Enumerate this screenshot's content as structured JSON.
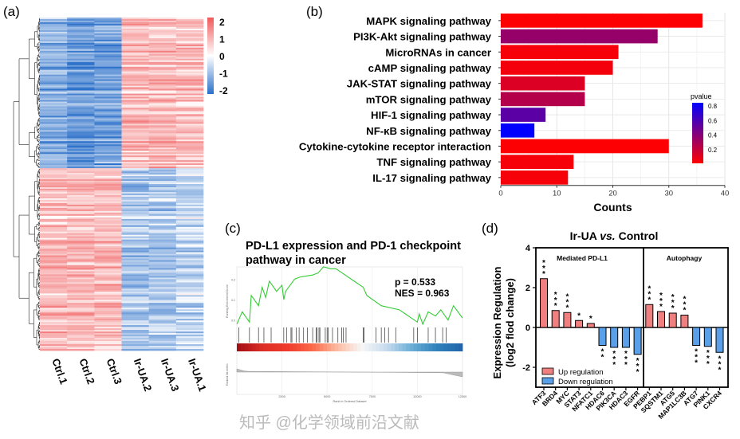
{
  "panel_labels": {
    "a": "(a)",
    "b": "(b)",
    "c": "(c)",
    "d": "(d)"
  },
  "watermark": "知乎 @化学领域前沿文献",
  "chart_data": [
    {
      "type": "heatmap",
      "panel": "a",
      "columns": [
        "Ctrl.1",
        "Ctrl.2",
        "Ctrl.3",
        "Ir-UA.2",
        "Ir-UA.3",
        "Ir-UA.1"
      ],
      "colorbar": {
        "ticks": [
          "2",
          "1",
          "0",
          "-1",
          "-2"
        ],
        "range": [
          -2,
          2
        ],
        "low_color": "#2a6fc9",
        "mid_color": "#ffffff",
        "high_color": "#f0595a"
      },
      "clusters": [
        {
          "row_share": 0.45,
          "column_means": [
            -1.1,
            -1.4,
            -1.3,
            0.8,
            0.8,
            0.75
          ]
        },
        {
          "row_share": 0.55,
          "column_means": [
            0.85,
            0.85,
            0.8,
            -0.8,
            -0.8,
            -0.6
          ]
        }
      ],
      "dendrogram": true
    },
    {
      "type": "bar",
      "panel": "b",
      "orientation": "horizontal",
      "categories": [
        "MAPK signaling pathway",
        "PI3K-Akt signaling pathway",
        "MicroRNAs in cancer",
        "cAMP signaling pathway",
        "JAK-STAT signaling pathway",
        "mTOR signaling pathway",
        "HIF-1 signaling pathway",
        "NF-κB signaling pathway",
        "Cytokine-cytokine receptor interaction",
        "TNF signaling pathway",
        "IL-17 signaling pathway"
      ],
      "values": [
        36,
        28,
        21,
        20,
        15,
        15,
        8,
        6,
        30,
        13,
        12
      ],
      "pvalue": [
        0.01,
        0.35,
        0.03,
        0.04,
        0.12,
        0.25,
        0.55,
        0.85,
        0.01,
        0.03,
        0.03
      ],
      "xlabel": "Counts",
      "xlim": [
        0,
        40
      ],
      "xticks": [
        "0",
        "10",
        "20",
        "30",
        "40"
      ],
      "grid": true,
      "legend": {
        "title": "pvalue",
        "ticks": [
          "0.8",
          "0.6",
          "0.4",
          "0.2"
        ],
        "low_color": "#ff0000",
        "high_color": "#0000ff",
        "placement": "right"
      }
    },
    {
      "type": "line",
      "panel": "c",
      "title": "PD-L1 expression and PD-1 checkpoint pathway in cancer",
      "annotation": [
        "p = 0.533",
        "NES = 0.963"
      ],
      "ylabel": "Running Enrichment Score",
      "ylabel2": "Ranked list metric",
      "xlabel": "Rank in Ordered Dataset",
      "xlim": [
        0,
        12500
      ],
      "xticks": [
        "2500",
        "5000",
        "7500",
        "10000",
        "12500"
      ],
      "yticks": [
        "0.2",
        "0.1",
        "0.0"
      ],
      "line_color": "#33cc33",
      "x": [
        0,
        300,
        700,
        800,
        1200,
        1400,
        1600,
        1800,
        2200,
        2500,
        2600,
        2700,
        3200,
        3500,
        4200,
        4500,
        4800,
        5200,
        5500,
        6000,
        6500,
        7000,
        7200,
        8000,
        9000,
        10000,
        10100,
        10300,
        10600,
        11000,
        11300,
        11700,
        12000,
        12500
      ],
      "y": [
        -0.02,
        0.04,
        -0.01,
        0.12,
        0.07,
        0.16,
        0.11,
        0.19,
        0.14,
        0.17,
        0.1,
        0.14,
        0.2,
        0.21,
        0.22,
        0.23,
        0.26,
        0.25,
        0.25,
        0.22,
        0.19,
        0.16,
        0.12,
        0.07,
        0.05,
        -0.01,
        0.03,
        -0.02,
        0.04,
        0.02,
        0.05,
        0.0,
        0.07,
        0.01
      ],
      "hits": [
        100,
        700,
        1200,
        1500,
        1900,
        2600,
        2750,
        3000,
        3050,
        3300,
        3450,
        3700,
        3900,
        4200,
        4400,
        4450,
        4550,
        4600,
        4900,
        5000,
        5050,
        5300,
        5600,
        5800,
        5900,
        6050,
        7000,
        7050,
        7700,
        8000,
        8200,
        8400,
        8800,
        9800,
        10000,
        10600,
        11000,
        11400,
        11600
      ]
    },
    {
      "type": "bar",
      "panel": "d",
      "title": "Ir-UA vs. Control",
      "ylabel": "Expression Regulation (log2 flod change)",
      "ylim": [
        -3,
        4
      ],
      "yticks": [
        "4",
        "2",
        "0",
        "-2"
      ],
      "groups": [
        "Mediated PD-L1",
        "Autophagy"
      ],
      "categories": [
        "ATF3",
        "BRD4",
        "MYC",
        "STAT3",
        "NFATC1",
        "HDAC6",
        "PIK3CA",
        "HDAC3",
        "EGFR",
        "PEBP1",
        "SQSTM1",
        "ATG5",
        "MAP1LC3B",
        "ATG7",
        "PINK1",
        "CXCR4"
      ],
      "group_of": [
        0,
        0,
        0,
        0,
        0,
        0,
        0,
        0,
        0,
        1,
        1,
        1,
        1,
        1,
        1,
        1
      ],
      "values": [
        2.45,
        0.85,
        0.75,
        0.35,
        0.2,
        -0.9,
        -1.0,
        -1.0,
        -1.35,
        1.15,
        0.8,
        0.72,
        0.62,
        -0.9,
        -0.95,
        -1.25
      ],
      "significance": [
        "***",
        "***",
        "***",
        "*",
        "*",
        "**",
        "***",
        "***",
        "***",
        "***",
        "***",
        "***",
        "***",
        "***",
        "***",
        "***"
      ],
      "legend": [
        {
          "name": "Up regulation",
          "color": "#f08080"
        },
        {
          "name": "Down regulation",
          "color": "#5aa0e8"
        }
      ],
      "legend_placement": "bottom-left"
    }
  ]
}
